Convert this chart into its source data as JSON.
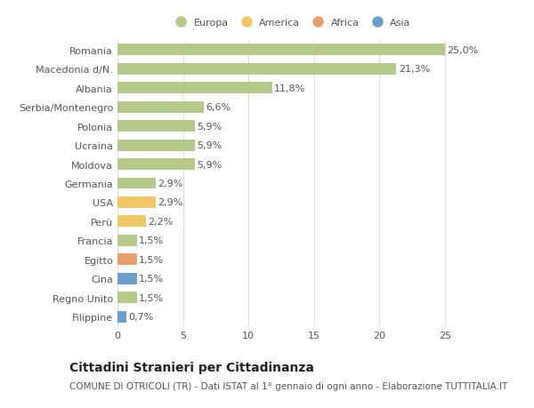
{
  "categories": [
    "Filippine",
    "Regno Unito",
    "Cina",
    "Egitto",
    "Francia",
    "Perù",
    "USA",
    "Germania",
    "Moldova",
    "Ucraina",
    "Polonia",
    "Serbia/Montenegro",
    "Albania",
    "Macedonia d/N.",
    "Romania"
  ],
  "values": [
    0.7,
    1.5,
    1.5,
    1.5,
    1.5,
    2.2,
    2.9,
    2.9,
    5.9,
    5.9,
    5.9,
    6.6,
    11.8,
    21.3,
    25.0
  ],
  "labels": [
    "0,7%",
    "1,5%",
    "1,5%",
    "1,5%",
    "1,5%",
    "2,2%",
    "2,9%",
    "2,9%",
    "5,9%",
    "5,9%",
    "5,9%",
    "6,6%",
    "11,8%",
    "21,3%",
    "25,0%"
  ],
  "colors": [
    "#6b9ec8",
    "#b5c98a",
    "#6b9ec8",
    "#e8a070",
    "#b5c98a",
    "#f0c86a",
    "#f0c86a",
    "#b5c98a",
    "#b5c98a",
    "#b5c98a",
    "#b5c98a",
    "#b5c98a",
    "#b5c98a",
    "#b5c98a",
    "#b5c98a"
  ],
  "legend_labels": [
    "Europa",
    "America",
    "Africa",
    "Asia"
  ],
  "legend_colors": [
    "#b5c98a",
    "#f0c86a",
    "#e8a070",
    "#6b9ec8"
  ],
  "title": "Cittadini Stranieri per Cittadinanza",
  "subtitle": "COMUNE DI OTRICOLI (TR) - Dati ISTAT al 1° gennaio di ogni anno - Elaborazione TUTTITALIA.IT",
  "xlim": [
    0,
    26.5
  ],
  "xticks": [
    0,
    5,
    10,
    15,
    20,
    25
  ],
  "bar_height": 0.6,
  "background_color": "#ffffff",
  "grid_color": "#dddddd",
  "label_fontsize": 8,
  "tick_fontsize": 8,
  "title_fontsize": 10,
  "subtitle_fontsize": 7.5
}
